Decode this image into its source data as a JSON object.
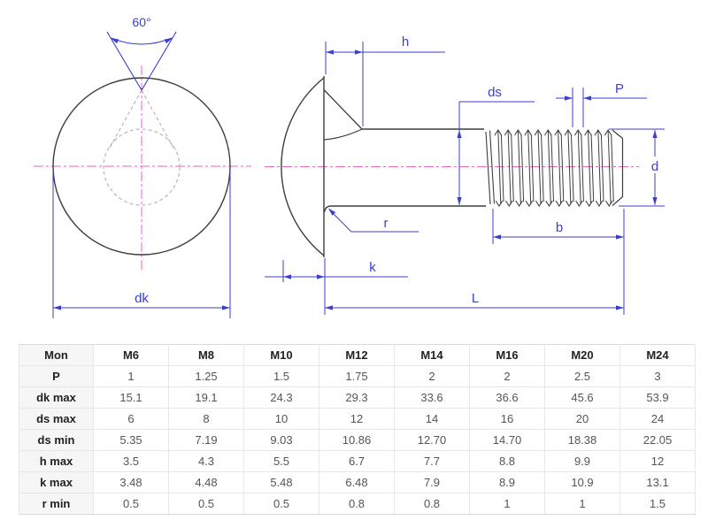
{
  "drawing": {
    "labels": {
      "angle": "60°",
      "dk": "dk",
      "h": "h",
      "ds": "ds",
      "P": "P",
      "d": "d",
      "r": "r",
      "k": "k",
      "b": "b",
      "L": "L"
    },
    "colors": {
      "dimension": "#383fd2",
      "centerline": "#ee63c5",
      "outline": "#3d3d3d",
      "hidden": "#b5b2ae"
    }
  },
  "table": {
    "columns": [
      "Mon",
      "M6",
      "M8",
      "M10",
      "M12",
      "M14",
      "M16",
      "M20",
      "M24"
    ],
    "rows": [
      {
        "label": "P",
        "values": [
          "1",
          "1.25",
          "1.5",
          "1.75",
          "2",
          "2",
          "2.5",
          "3"
        ]
      },
      {
        "label": "dk max",
        "values": [
          "15.1",
          "19.1",
          "24.3",
          "29.3",
          "33.6",
          "36.6",
          "45.6",
          "53.9"
        ]
      },
      {
        "label": "ds max",
        "values": [
          "6",
          "8",
          "10",
          "12",
          "14",
          "16",
          "20",
          "24"
        ]
      },
      {
        "label": "ds min",
        "values": [
          "5.35",
          "7.19",
          "9.03",
          "10.86",
          "12.70",
          "14.70",
          "18.38",
          "22.05"
        ]
      },
      {
        "label": "h max",
        "values": [
          "3.5",
          "4.3",
          "5.5",
          "6.7",
          "7.7",
          "8.8",
          "9.9",
          "12"
        ]
      },
      {
        "label": "k max",
        "values": [
          "3.48",
          "4.48",
          "5.48",
          "6.48",
          "7.9",
          "8.9",
          "10.9",
          "13.1"
        ]
      },
      {
        "label": "r min",
        "values": [
          "0.5",
          "0.5",
          "0.5",
          "0.8",
          "0.8",
          "1",
          "1",
          "1.5"
        ]
      }
    ]
  }
}
